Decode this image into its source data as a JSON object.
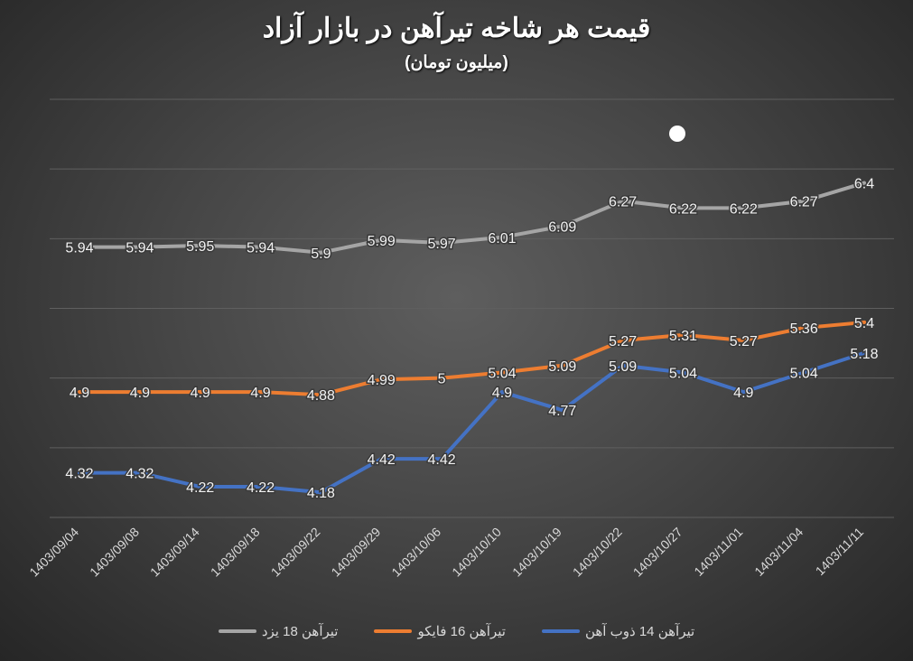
{
  "chart_data": {
    "type": "line",
    "title": "قیمت هر شاخه تیرآهن در بازار آزاد",
    "subtitle": "(میلیون تومان)",
    "categories": [
      "1403/09/04",
      "1403/09/08",
      "1403/09/14",
      "1403/09/18",
      "1403/09/22",
      "1403/09/29",
      "1403/10/06",
      "1403/10/10",
      "1403/10/19",
      "1403/10/22",
      "1403/10/27",
      "1403/11/01",
      "1403/11/04",
      "1403/11/11"
    ],
    "series": [
      {
        "name": "تیرآهن 14 ذوب آهن",
        "color": "#4472c4",
        "values": [
          4.32,
          4.32,
          4.22,
          4.22,
          4.18,
          4.42,
          4.42,
          4.9,
          4.77,
          5.09,
          5.04,
          4.9,
          5.04,
          5.18
        ]
      },
      {
        "name": "تیرآهن 16 فایکو",
        "color": "#ed7d31",
        "values": [
          4.9,
          4.9,
          4.9,
          4.9,
          4.88,
          4.99,
          5,
          5.04,
          5.09,
          5.27,
          5.31,
          5.27,
          5.36,
          5.4
        ]
      },
      {
        "name": "تیرآهن 18 یزد",
        "color": "#a5a5a5",
        "values": [
          5.94,
          5.94,
          5.95,
          5.94,
          5.9,
          5.99,
          5.97,
          6.01,
          6.09,
          6.27,
          6.22,
          6.22,
          6.27,
          6.4
        ]
      }
    ],
    "ylim": [
      4,
      7
    ],
    "ystep": 0.5,
    "grid": true,
    "y_axis_labels": false,
    "data_labels": true,
    "legend": "bottom"
  }
}
